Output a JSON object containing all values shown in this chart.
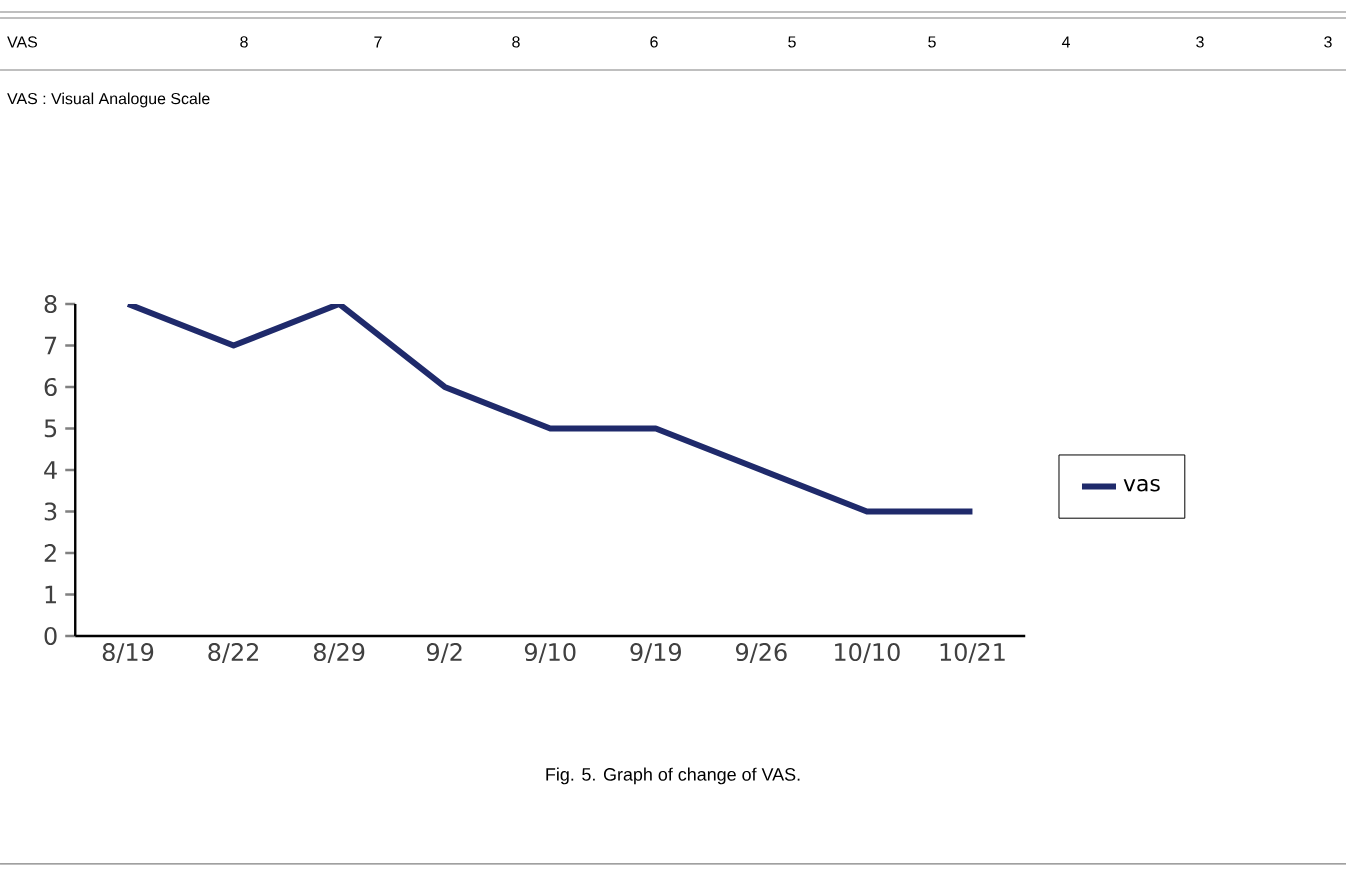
{
  "chart_data": {
    "type": "line",
    "categories": [
      "8/19",
      "8/22",
      "8/29",
      "9/2",
      "9/10",
      "9/19",
      "9/26",
      "10/10",
      "10/21"
    ],
    "series": [
      {
        "name": "vas",
        "color": "#1f2a6b",
        "values": [
          8,
          7,
          8,
          6,
          5,
          5,
          4,
          3,
          3
        ]
      }
    ],
    "ylim": [
      0,
      8
    ],
    "yticks": [
      0,
      1,
      2,
      3,
      4,
      5,
      6,
      7,
      8
    ],
    "legend": "right",
    "grid": false,
    "marker": "none",
    "line_style": "solid",
    "annotations": [
      "VAS : Visual Analogue Scale",
      "Fig. 5. Graph of change of VAS.",
      "VAS",
      "8",
      "7",
      "8",
      "6",
      "5",
      "5",
      "4",
      "3",
      "3"
    ]
  }
}
